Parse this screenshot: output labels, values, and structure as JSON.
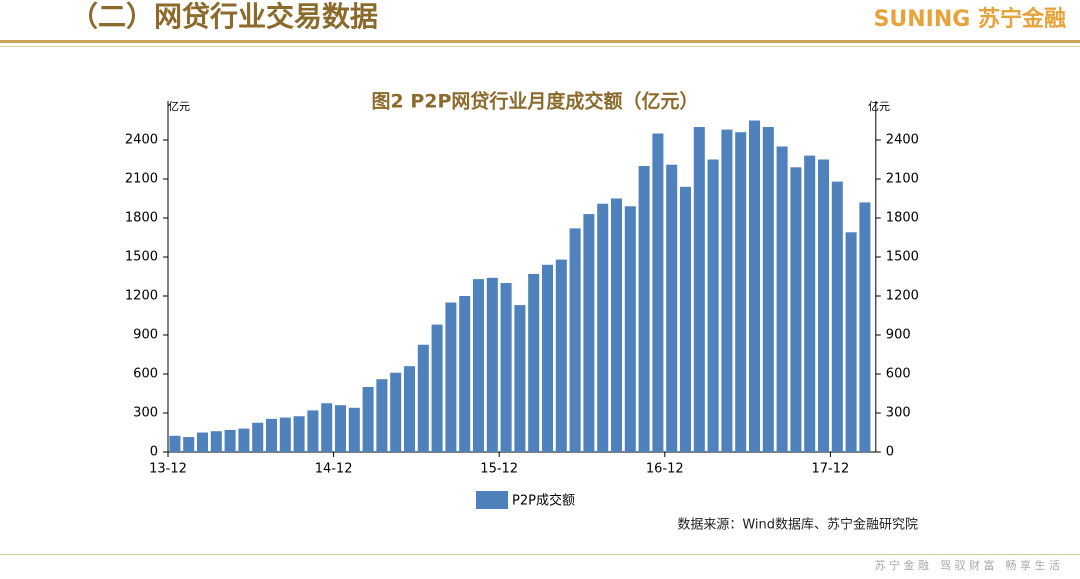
{
  "header": {
    "title": "（二）网贷行业交易数据",
    "logo": "SUNING 苏宁金融"
  },
  "chart_data": {
    "type": "bar",
    "title": "图2 P2P网贷行业月度成交额（亿元）",
    "y_unit": "亿元",
    "categories": [
      "13-12",
      null,
      null,
      null,
      null,
      null,
      null,
      null,
      null,
      null,
      null,
      null,
      "14-12",
      null,
      null,
      null,
      null,
      null,
      null,
      null,
      null,
      null,
      null,
      null,
      "15-12",
      null,
      null,
      null,
      null,
      null,
      null,
      null,
      null,
      null,
      null,
      null,
      "16-12",
      null,
      null,
      null,
      null,
      null,
      null,
      null,
      null,
      null,
      null,
      null,
      "17-12",
      null,
      null,
      null
    ],
    "series": [
      {
        "name": "P2P成交额",
        "color": "#4f81bd",
        "values": [
          null,
          125,
          115,
          150,
          160,
          170,
          180,
          225,
          255,
          265,
          275,
          320,
          375,
          360,
          340,
          500,
          560,
          610,
          660,
          825,
          980,
          1150,
          1200,
          1330,
          1340,
          1300,
          1130,
          1370,
          1440,
          1480,
          1720,
          1830,
          1910,
          1950,
          1890,
          2200,
          2450,
          2210,
          2040,
          2500,
          2250,
          2480,
          2460,
          2550,
          2500,
          2350,
          2190,
          2280,
          2250,
          2080,
          1690,
          1920
        ]
      }
    ],
    "ylim": [
      0,
      2700
    ],
    "yticks": [
      0,
      300,
      600,
      900,
      1200,
      1500,
      1800,
      2100,
      2400
    ],
    "legend": "bottom",
    "source": "数据来源：Wind数据库、苏宁金融研究院"
  },
  "footer": {
    "slogan": "苏 宁 金 融　驾 驭 财 富　畅 享 生 活"
  }
}
